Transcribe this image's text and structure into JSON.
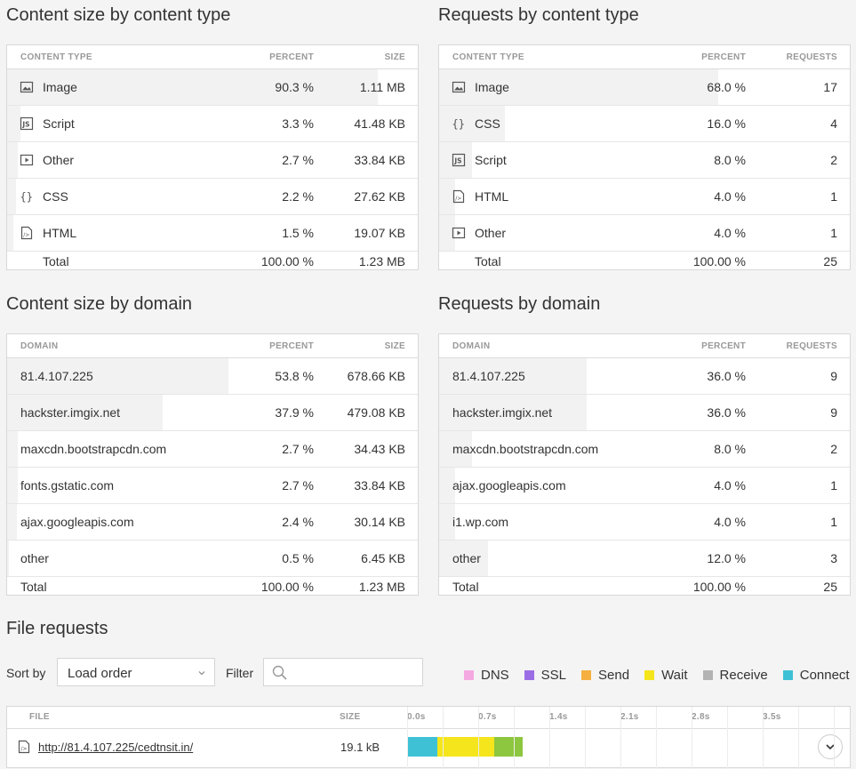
{
  "sections": {
    "size_type_title": "Content size by content type",
    "req_type_title": "Requests by content type",
    "size_domain_title": "Content size by domain",
    "req_domain_title": "Requests by domain",
    "file_requests_title": "File requests"
  },
  "headers": {
    "content_type": "CONTENT TYPE",
    "domain": "DOMAIN",
    "percent": "PERCENT",
    "size": "SIZE",
    "requests": "REQUESTS"
  },
  "size_by_type": {
    "rows": [
      {
        "icon": "image-icon",
        "name": "Image",
        "percent": "90.3 %",
        "value": "1.11 MB",
        "share": 0.903
      },
      {
        "icon": "script-icon",
        "name": "Script",
        "percent": "3.3 %",
        "value": "41.48 KB",
        "share": 0.033
      },
      {
        "icon": "other-icon",
        "name": "Other",
        "percent": "2.7 %",
        "value": "33.84 KB",
        "share": 0.027
      },
      {
        "icon": "css-icon",
        "name": "CSS",
        "percent": "2.2 %",
        "value": "27.62 KB",
        "share": 0.022
      },
      {
        "icon": "html-icon",
        "name": "HTML",
        "percent": "1.5 %",
        "value": "19.07 KB",
        "share": 0.015
      }
    ],
    "total": {
      "name": "Total",
      "percent": "100.00 %",
      "value": "1.23 MB"
    }
  },
  "req_by_type": {
    "rows": [
      {
        "icon": "image-icon",
        "name": "Image",
        "percent": "68.0 %",
        "value": "17",
        "share": 0.68
      },
      {
        "icon": "css-icon",
        "name": "CSS",
        "percent": "16.0 %",
        "value": "4",
        "share": 0.16
      },
      {
        "icon": "script-icon",
        "name": "Script",
        "percent": "8.0 %",
        "value": "2",
        "share": 0.08
      },
      {
        "icon": "html-icon",
        "name": "HTML",
        "percent": "4.0 %",
        "value": "1",
        "share": 0.04
      },
      {
        "icon": "other-icon",
        "name": "Other",
        "percent": "4.0 %",
        "value": "1",
        "share": 0.04
      }
    ],
    "total": {
      "name": "Total",
      "percent": "100.00 %",
      "value": "25"
    }
  },
  "size_by_domain": {
    "rows": [
      {
        "name": "81.4.107.225",
        "percent": "53.8 %",
        "value": "678.66 KB",
        "share": 0.538
      },
      {
        "name": "hackster.imgix.net",
        "percent": "37.9 %",
        "value": "479.08 KB",
        "share": 0.379
      },
      {
        "name": "maxcdn.bootstrapcdn.com",
        "percent": "2.7 %",
        "value": "34.43 KB",
        "share": 0.027
      },
      {
        "name": "fonts.gstatic.com",
        "percent": "2.7 %",
        "value": "33.84 KB",
        "share": 0.027
      },
      {
        "name": "ajax.googleapis.com",
        "percent": "2.4 %",
        "value": "30.14 KB",
        "share": 0.024
      },
      {
        "name": "other",
        "percent": "0.5 %",
        "value": "6.45 KB",
        "share": 0.005
      }
    ],
    "total": {
      "name": "Total",
      "percent": "100.00 %",
      "value": "1.23 MB"
    }
  },
  "req_by_domain": {
    "rows": [
      {
        "name": "81.4.107.225",
        "percent": "36.0 %",
        "value": "9",
        "share": 0.36
      },
      {
        "name": "hackster.imgix.net",
        "percent": "36.0 %",
        "value": "9",
        "share": 0.36
      },
      {
        "name": "maxcdn.bootstrapcdn.com",
        "percent": "8.0 %",
        "value": "2",
        "share": 0.08
      },
      {
        "name": "ajax.googleapis.com",
        "percent": "4.0 %",
        "value": "1",
        "share": 0.04
      },
      {
        "name": "i1.wp.com",
        "percent": "4.0 %",
        "value": "1",
        "share": 0.04
      },
      {
        "name": "other",
        "percent": "12.0 %",
        "value": "3",
        "share": 0.12
      }
    ],
    "total": {
      "name": "Total",
      "percent": "100.00 %",
      "value": "25"
    }
  },
  "toolbar": {
    "sort_label": "Sort by",
    "sort_value": "Load order",
    "filter_label": "Filter",
    "filter_placeholder": ""
  },
  "legend": [
    {
      "name": "DNS",
      "color": "#f5a9e1"
    },
    {
      "name": "SSL",
      "color": "#9c6ee6"
    },
    {
      "name": "Send",
      "color": "#f5b041"
    },
    {
      "name": "Wait",
      "color": "#f5e51c"
    },
    {
      "name": "Receive",
      "color": "#b3b3b3"
    },
    {
      "name": "Connect",
      "color": "#3fc1d5"
    }
  ],
  "file_table": {
    "col_file": "FILE",
    "col_size": "SIZE",
    "ticks": [
      "0.0s",
      "0.7s",
      "1.4s",
      "2.1s",
      "2.8s",
      "3.5s"
    ],
    "rows": [
      {
        "url": "http://81.4.107.225/cedtnsit.in/",
        "size": "19.1 kB",
        "timing": [
          {
            "phase": "Connect",
            "color": "#3fc1d5",
            "start": 0.0,
            "end": 0.3
          },
          {
            "phase": "Wait",
            "color": "#f5e51c",
            "start": 0.3,
            "end": 0.86
          },
          {
            "phase": "Receive",
            "color": "#8dc63f",
            "start": 0.86,
            "end": 1.14
          }
        ]
      }
    ]
  }
}
